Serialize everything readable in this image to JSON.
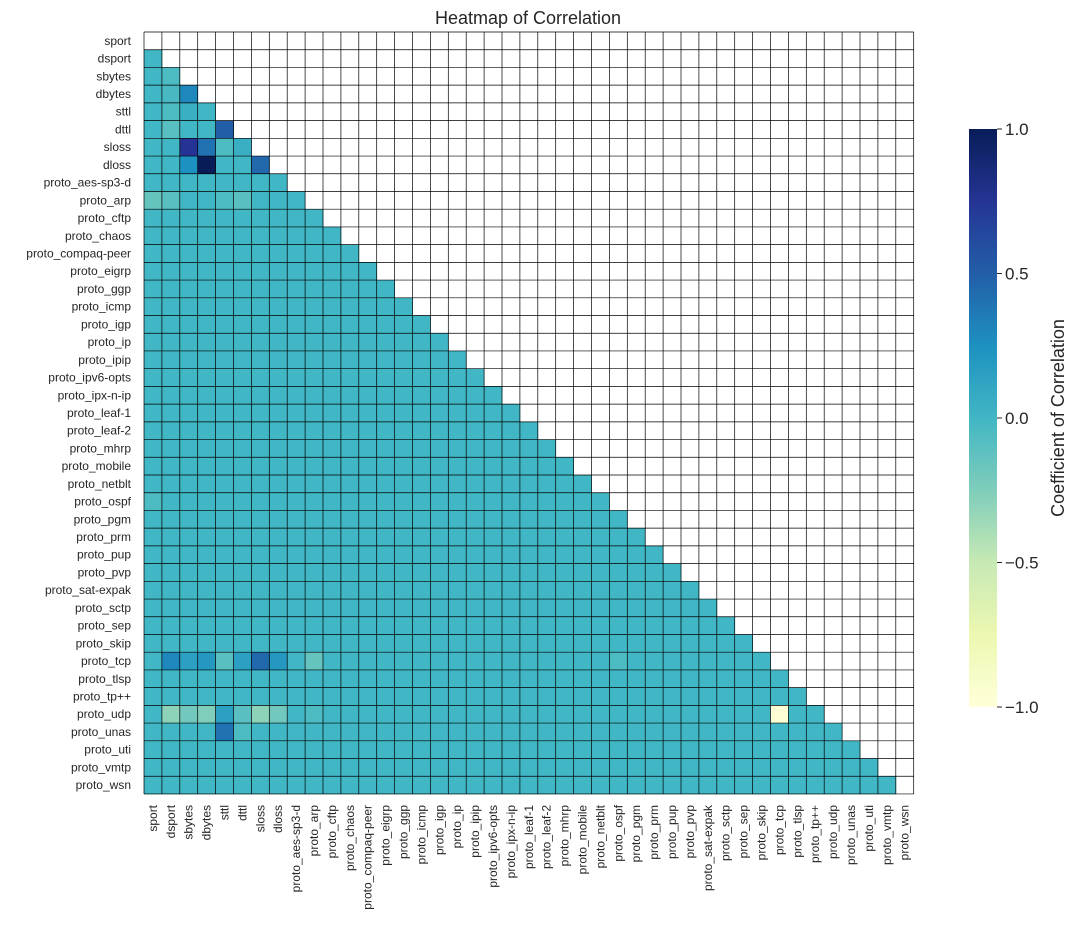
{
  "chart_data": {
    "type": "heatmap",
    "title": "Heatmap of Correlation",
    "mask": "upper-triangle-including-diagonal",
    "labels": [
      "sport",
      "dsport",
      "sbytes",
      "dbytes",
      "sttl",
      "dttl",
      "sloss",
      "dloss",
      "proto_aes-sp3-d",
      "proto_arp",
      "proto_cftp",
      "proto_chaos",
      "proto_compaq-peer",
      "proto_eigrp",
      "proto_ggp",
      "proto_icmp",
      "proto_igp",
      "proto_ip",
      "proto_ipip",
      "proto_ipv6-opts",
      "proto_ipx-n-ip",
      "proto_leaf-1",
      "proto_leaf-2",
      "proto_mhrp",
      "proto_mobile",
      "proto_netblt",
      "proto_ospf",
      "proto_pgm",
      "proto_prm",
      "proto_pup",
      "proto_pvp",
      "proto_sat-expak",
      "proto_sctp",
      "proto_sep",
      "proto_skip",
      "proto_tcp",
      "proto_tlsp",
      "proto_tp++",
      "proto_udp",
      "proto_unas",
      "proto_uti",
      "proto_vmtp",
      "proto_wsn"
    ],
    "default_value": 0.0,
    "nonzero_cells": [
      {
        "row": "sbytes",
        "col": "dsport",
        "value": -0.05
      },
      {
        "row": "dbytes",
        "col": "sbytes",
        "value": 0.3
      },
      {
        "row": "dbytes",
        "col": "dsport",
        "value": -0.03
      },
      {
        "row": "sttl",
        "col": "dsport",
        "value": -0.05
      },
      {
        "row": "sttl",
        "col": "sbytes",
        "value": 0.05
      },
      {
        "row": "dttl",
        "col": "dsport",
        "value": -0.1
      },
      {
        "row": "dttl",
        "col": "sttl",
        "value": 0.5
      },
      {
        "row": "sloss",
        "col": "sbytes",
        "value": 0.75
      },
      {
        "row": "sloss",
        "col": "dbytes",
        "value": 0.4
      },
      {
        "row": "sloss",
        "col": "sttl",
        "value": -0.05
      },
      {
        "row": "sloss",
        "col": "dttl",
        "value": 0.05
      },
      {
        "row": "dloss",
        "col": "sbytes",
        "value": 0.25
      },
      {
        "row": "dloss",
        "col": "dbytes",
        "value": 1.0
      },
      {
        "row": "dloss",
        "col": "sloss",
        "value": 0.45
      },
      {
        "row": "proto_arp",
        "col": "sport",
        "value": -0.15
      },
      {
        "row": "proto_arp",
        "col": "dsport",
        "value": -0.1
      },
      {
        "row": "proto_arp",
        "col": "sttl",
        "value": -0.05
      },
      {
        "row": "proto_arp",
        "col": "dttl",
        "value": -0.1
      },
      {
        "row": "proto_ospf",
        "col": "sport",
        "value": -0.05
      },
      {
        "row": "proto_tcp",
        "col": "dsport",
        "value": 0.3
      },
      {
        "row": "proto_tcp",
        "col": "sbytes",
        "value": 0.15
      },
      {
        "row": "proto_tcp",
        "col": "dbytes",
        "value": 0.2
      },
      {
        "row": "proto_tcp",
        "col": "sttl",
        "value": -0.1
      },
      {
        "row": "proto_tcp",
        "col": "dttl",
        "value": 0.15
      },
      {
        "row": "proto_tcp",
        "col": "sloss",
        "value": 0.45
      },
      {
        "row": "proto_tcp",
        "col": "dloss",
        "value": 0.2
      },
      {
        "row": "proto_tcp",
        "col": "proto_arp",
        "value": -0.15
      },
      {
        "row": "proto_tcp",
        "col": "proto_ospf",
        "value": -0.05
      },
      {
        "row": "proto_udp",
        "col": "dsport",
        "value": -0.3
      },
      {
        "row": "proto_udp",
        "col": "sbytes",
        "value": -0.2
      },
      {
        "row": "proto_udp",
        "col": "dbytes",
        "value": -0.25
      },
      {
        "row": "proto_udp",
        "col": "sttl",
        "value": 0.15
      },
      {
        "row": "proto_udp",
        "col": "dttl",
        "value": -0.1
      },
      {
        "row": "proto_udp",
        "col": "sloss",
        "value": -0.3
      },
      {
        "row": "proto_udp",
        "col": "dloss",
        "value": -0.2
      },
      {
        "row": "proto_udp",
        "col": "proto_arp",
        "value": -0.05
      },
      {
        "row": "proto_udp",
        "col": "proto_tcp",
        "value": -0.97
      },
      {
        "row": "proto_unas",
        "col": "sttl",
        "value": 0.4
      },
      {
        "row": "proto_unas",
        "col": "dttl",
        "value": -0.05
      }
    ],
    "colorbar": {
      "label": "Coefficient of Correlation",
      "colormap": "YlGnBu",
      "range": [
        -1.0,
        1.0
      ],
      "ticks": [
        1.0,
        0.5,
        0.0,
        -0.5,
        -1.0
      ],
      "tick_labels": [
        "1.0",
        "0.5",
        "0.0",
        "−0.5",
        "−1.0"
      ]
    }
  }
}
